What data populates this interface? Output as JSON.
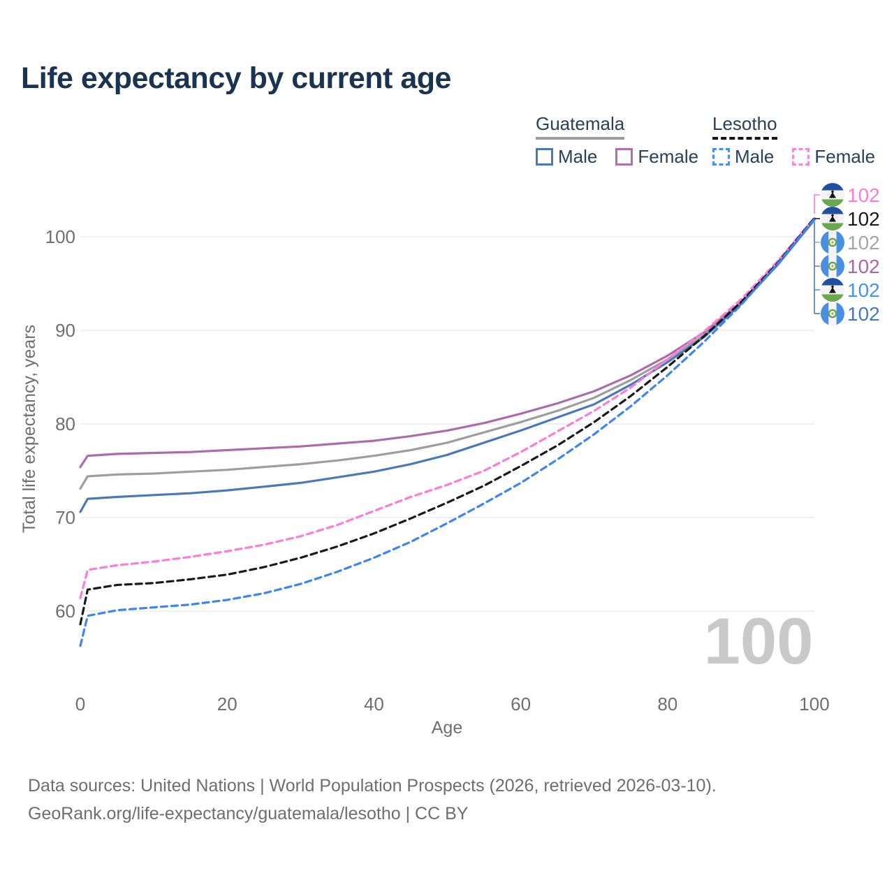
{
  "title": "Life expectancy by current age",
  "legend": {
    "groups": [
      {
        "label": "Guatemala",
        "line_style": "solid",
        "underline_color": "#9c9c9c",
        "items": [
          {
            "label": "Male",
            "color": "#4a79ba",
            "dashed": false
          },
          {
            "label": "Female",
            "color": "#b06fae",
            "dashed": false
          }
        ]
      },
      {
        "label": "Lesotho",
        "line_style": "dashed",
        "underline_color": "#161616",
        "items": [
          {
            "label": "Male",
            "color": "#4a8ef5",
            "dashed": true
          },
          {
            "label": "Female",
            "color": "#fb86da",
            "dashed": true
          }
        ]
      }
    ]
  },
  "chart_data": {
    "type": "line",
    "title": "Life expectancy by current age",
    "xlabel": "Age",
    "ylabel": "Total life expectancy, years",
    "xlim": [
      0,
      100
    ],
    "ylim": [
      55,
      104
    ],
    "x_ticks": [
      0,
      20,
      40,
      60,
      80,
      100
    ],
    "y_ticks": [
      60,
      70,
      80,
      90,
      100
    ],
    "grid": "horizontal",
    "legend_position": "top-right",
    "watermark": "100",
    "ages": [
      0,
      1,
      5,
      10,
      15,
      20,
      25,
      30,
      35,
      40,
      45,
      50,
      55,
      60,
      65,
      70,
      75,
      80,
      85,
      90,
      95,
      100
    ],
    "series": [
      {
        "name": "Guatemala Female",
        "country": "Guatemala",
        "sex": "Female",
        "color": "#ae6bab",
        "dash": false,
        "end_label": "102",
        "values": [
          75.4,
          76.6,
          76.8,
          76.9,
          77.0,
          77.2,
          77.4,
          77.6,
          77.9,
          78.2,
          78.7,
          79.3,
          80.1,
          81.1,
          82.2,
          83.5,
          85.2,
          87.3,
          89.8,
          93.0,
          97.2,
          101.9
        ]
      },
      {
        "name": "Guatemala",
        "country": "Guatemala",
        "sex": "All",
        "color": "#9e9e9e",
        "dash": false,
        "end_label": "102",
        "values": [
          73.1,
          74.4,
          74.6,
          74.7,
          74.9,
          75.1,
          75.4,
          75.7,
          76.1,
          76.6,
          77.2,
          78.0,
          79.1,
          80.2,
          81.4,
          82.8,
          84.7,
          86.9,
          89.5,
          92.9,
          97.1,
          101.8
        ]
      },
      {
        "name": "Guatemala Male",
        "country": "Guatemala",
        "sex": "Male",
        "color": "#4a79ba",
        "dash": false,
        "end_label": "102",
        "values": [
          70.6,
          72.0,
          72.2,
          72.4,
          72.6,
          72.9,
          73.3,
          73.7,
          74.3,
          74.9,
          75.7,
          76.7,
          78.0,
          79.3,
          80.7,
          82.1,
          84.2,
          86.6,
          89.3,
          92.8,
          97.0,
          101.8
        ]
      },
      {
        "name": "Lesotho Female",
        "country": "Lesotho",
        "sex": "Female",
        "color": "#fb7dd8",
        "dash": true,
        "end_label": "102",
        "values": [
          61.4,
          64.4,
          64.9,
          65.3,
          65.8,
          66.4,
          67.1,
          68.0,
          69.2,
          70.7,
          72.2,
          73.5,
          75.0,
          77.0,
          79.2,
          81.4,
          83.9,
          86.9,
          89.9,
          93.3,
          97.4,
          102.0
        ]
      },
      {
        "name": "Lesotho",
        "country": "Lesotho",
        "sex": "All",
        "color": "#1a1a1a",
        "dash": true,
        "end_label": "102",
        "values": [
          58.6,
          62.3,
          62.8,
          63.0,
          63.4,
          63.9,
          64.7,
          65.7,
          66.9,
          68.3,
          69.9,
          71.6,
          73.4,
          75.5,
          77.7,
          80.2,
          83.0,
          86.1,
          89.4,
          93.0,
          97.2,
          102.0
        ]
      },
      {
        "name": "Lesotho Male",
        "country": "Lesotho",
        "sex": "Male",
        "color": "#3d85f2",
        "dash": true,
        "end_label": "102",
        "values": [
          56.3,
          59.5,
          60.1,
          60.4,
          60.7,
          61.2,
          61.9,
          62.9,
          64.2,
          65.7,
          67.4,
          69.4,
          71.5,
          73.7,
          76.2,
          78.9,
          81.9,
          85.2,
          88.8,
          92.7,
          97.1,
          101.9
        ]
      }
    ],
    "end_label_rows": [
      {
        "series": "Lesotho Female",
        "flag": "lesotho",
        "color": "#fb7dd8",
        "label": "102"
      },
      {
        "series": "Lesotho",
        "flag": "lesotho",
        "color": "#1a1a1a",
        "label": "102"
      },
      {
        "series": "Guatemala",
        "flag": "guatemala",
        "color": "#a6a6a6",
        "label": "102"
      },
      {
        "series": "Guatemala Female",
        "flag": "guatemala",
        "color": "#a868a8",
        "label": "102"
      },
      {
        "series": "Lesotho Male",
        "flag": "lesotho",
        "color": "#4a90f0",
        "label": "102"
      },
      {
        "series": "Guatemala Male",
        "flag": "guatemala",
        "color": "#4878b8",
        "label": "102"
      }
    ]
  },
  "footer": {
    "line1": "Data sources: United Nations | World Population Prospects (2026, retrieved 2026-03-10).",
    "line2": "GeoRank.org/life-expectancy/guatemala/lesotho | CC BY"
  }
}
